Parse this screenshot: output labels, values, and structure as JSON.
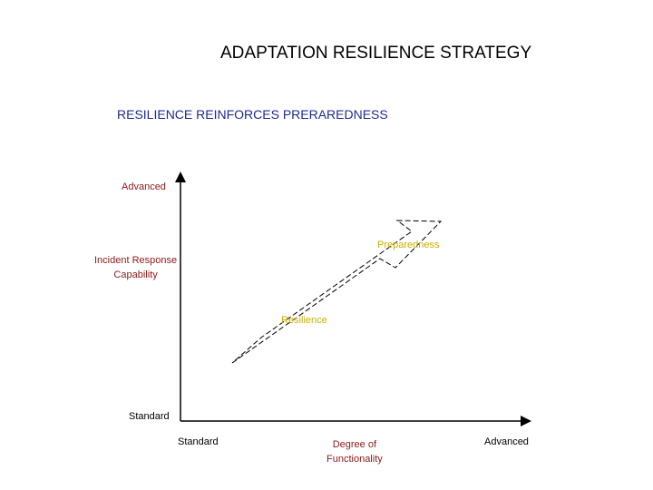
{
  "title": "ADAPTATION RESILIENCE STRATEGY",
  "subtitle": "RESILIENCE REINFORCES PRERAREDNESS",
  "axes": {
    "y_top_label": "Advanced",
    "y_axis_label": "Incident Response\nCapability",
    "y_bottom_label": "Standard",
    "x_left_label": "Standard",
    "x_axis_label": "Degree of\nFunctionality",
    "x_right_label": "Advanced"
  },
  "arrow_labels": {
    "upper": "Preparedness",
    "lower": "Resilience"
  },
  "colors": {
    "title": "#000000",
    "subtitle": "#1f2b8f",
    "axis_label": "#8b1a1a",
    "arrow_label": "#c9b000",
    "axis_line": "#000000",
    "arrow_outline": "#000000"
  }
}
